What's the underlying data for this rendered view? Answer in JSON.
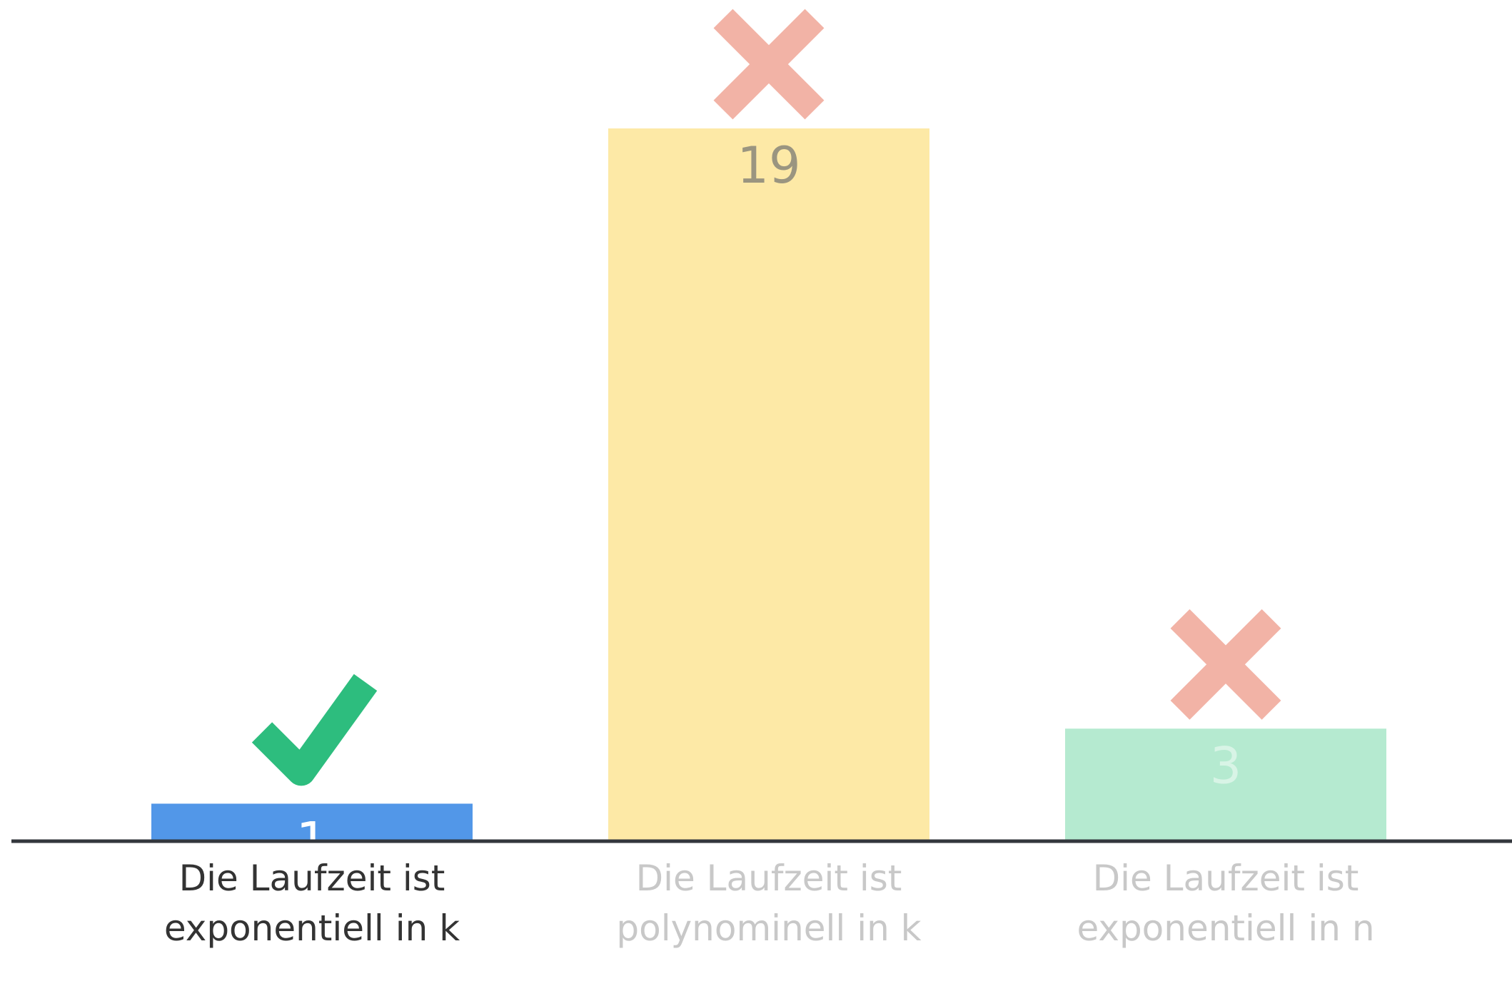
{
  "chart_data": {
    "type": "bar",
    "categories": [
      "Die Laufzeit ist exponentiell in k",
      "Die Laufzeit ist polynominell in k",
      "Die Laufzeit ist exponentiell in n"
    ],
    "values": [
      1,
      19,
      3
    ],
    "colors": [
      "#5297e8",
      "#fde9a6",
      "#b5ead0"
    ],
    "correct": [
      true,
      false,
      false
    ]
  }
}
